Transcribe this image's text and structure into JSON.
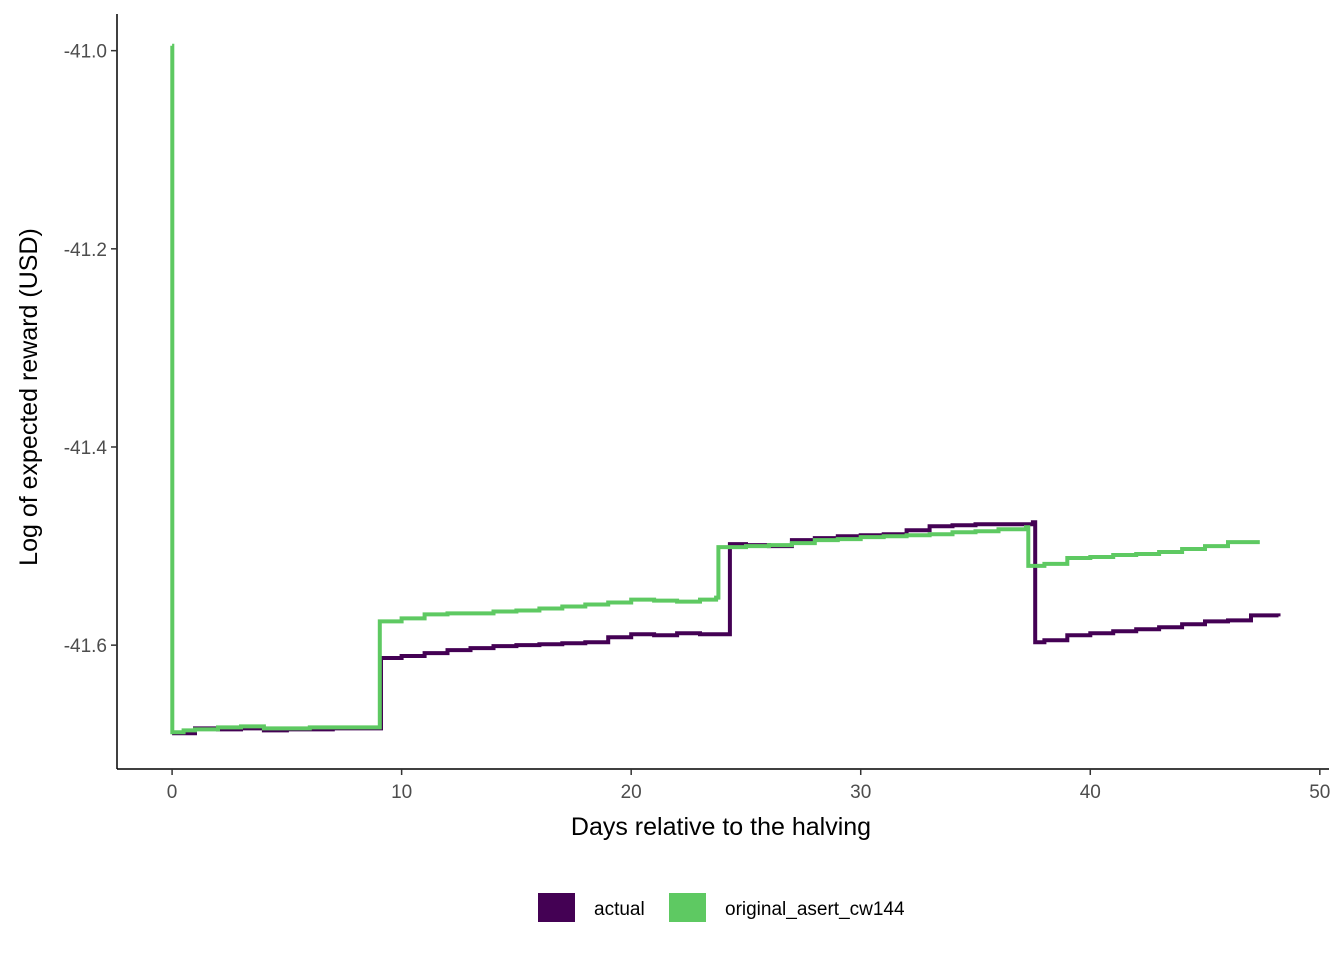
{
  "chart_data": {
    "type": "line",
    "title": "",
    "xlabel": "Days relative to the halving",
    "ylabel": "Log of expected reward (USD)",
    "xlim": [
      -2.4,
      50.4
    ],
    "ylim": [
      -41.725,
      -40.963
    ],
    "x_ticks": [
      0,
      10,
      20,
      30,
      40,
      50
    ],
    "x_tick_labels": [
      "0",
      "10",
      "20",
      "30",
      "40",
      "50"
    ],
    "y_ticks": [
      -41.6,
      -41.4,
      -41.2,
      -41.0
    ],
    "y_tick_labels": [
      "-41.6",
      "-41.4",
      "-41.2",
      "-41.0"
    ],
    "grid": false,
    "legend_position": "bottom",
    "step": true,
    "series": [
      {
        "name": "actual",
        "color": "#440154",
        "x": [
          0,
          1,
          2,
          3,
          4,
          5,
          6,
          7,
          8,
          9.0,
          9.1,
          10,
          11,
          12,
          13,
          14,
          15,
          16,
          17,
          18,
          19,
          20,
          21,
          22,
          23,
          24.2,
          24.3,
          25,
          26,
          27,
          28,
          29,
          30,
          31,
          32,
          33,
          34,
          35,
          36,
          37.5,
          37.6,
          38,
          39,
          40,
          41,
          42,
          43,
          44,
          45,
          46,
          47,
          48.2
        ],
        "y": [
          -41.689,
          -41.684,
          -41.685,
          -41.684,
          -41.686,
          -41.685,
          -41.685,
          -41.684,
          -41.684,
          -41.684,
          -41.613,
          -41.611,
          -41.608,
          -41.605,
          -41.603,
          -41.601,
          -41.6,
          -41.599,
          -41.598,
          -41.597,
          -41.592,
          -41.589,
          -41.59,
          -41.588,
          -41.589,
          -41.589,
          -41.498,
          -41.499,
          -41.5,
          -41.494,
          -41.492,
          -41.49,
          -41.489,
          -41.488,
          -41.484,
          -41.48,
          -41.479,
          -41.478,
          -41.478,
          -41.476,
          -41.597,
          -41.595,
          -41.59,
          -41.588,
          -41.586,
          -41.584,
          -41.582,
          -41.579,
          -41.576,
          -41.575,
          -41.57,
          -41.571
        ]
      },
      {
        "name": "original_asert_cw144",
        "color": "#5ec962",
        "x": [
          0,
          0.01,
          0.5,
          1,
          2,
          3,
          4,
          5,
          6,
          7,
          8,
          9.0,
          9.05,
          10,
          11,
          12,
          13,
          14,
          15,
          16,
          17,
          18,
          19,
          20,
          21,
          22,
          23,
          23.7,
          23.8,
          25,
          26,
          27,
          28,
          29,
          30,
          31,
          32,
          33,
          34,
          35,
          36,
          37.2,
          37.3,
          38,
          39,
          40,
          41,
          42,
          43,
          44,
          45,
          46,
          47.3
        ],
        "y": [
          -40.995,
          -41.688,
          -41.686,
          -41.685,
          -41.683,
          -41.682,
          -41.684,
          -41.684,
          -41.683,
          -41.683,
          -41.683,
          -41.683,
          -41.576,
          -41.573,
          -41.569,
          -41.568,
          -41.568,
          -41.566,
          -41.565,
          -41.563,
          -41.561,
          -41.559,
          -41.557,
          -41.554,
          -41.555,
          -41.556,
          -41.554,
          -41.552,
          -41.501,
          -41.5,
          -41.499,
          -41.497,
          -41.494,
          -41.493,
          -41.491,
          -41.49,
          -41.489,
          -41.488,
          -41.486,
          -41.485,
          -41.483,
          -41.481,
          -41.52,
          -41.518,
          -41.512,
          -41.511,
          -41.509,
          -41.508,
          -41.506,
          -41.503,
          -41.5,
          -41.496,
          -41.498
        ]
      }
    ]
  }
}
